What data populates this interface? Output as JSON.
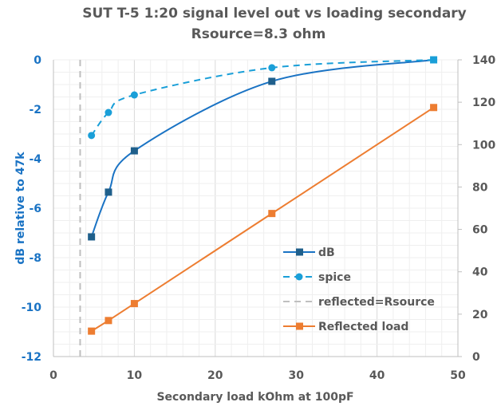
{
  "chart_data": {
    "type": "line",
    "title": "SUT T-5 1:20 signal level out vs loading secondary",
    "subtitle": "Rsource=8.3 ohm",
    "xlabel": "Secondary load kOhm at 100pF",
    "ylabel": "dB relative to 47k",
    "y2label": "",
    "xlim": [
      0,
      50
    ],
    "ylim": [
      -12,
      0
    ],
    "y2lim": [
      0,
      140
    ],
    "xticks": [
      0,
      10,
      20,
      30,
      40,
      50
    ],
    "yticks": [
      0,
      -2,
      -4,
      -6,
      -8,
      -10,
      -12
    ],
    "y2ticks": [
      140,
      120,
      100,
      80,
      60,
      40,
      20,
      0
    ],
    "grid": true,
    "legend_position": "bottom-right-inside",
    "series": [
      {
        "name": "dB",
        "axis": "left",
        "style": "solid-smooth",
        "marker": "square",
        "color": "#1a73c4",
        "marker_color": "#1f5f8b",
        "x": [
          4.7,
          6.8,
          10,
          27,
          47
        ],
        "values": [
          -7.16,
          -5.35,
          -3.68,
          -0.87,
          0
        ]
      },
      {
        "name": "spice",
        "axis": "left",
        "style": "dashed-smooth",
        "marker": "circle",
        "color": "#1a9fd8",
        "marker_color": "#1a9fd8",
        "x": [
          4.7,
          6.8,
          10,
          27,
          47
        ],
        "values": [
          -3.06,
          -2.13,
          -1.42,
          -0.32,
          0
        ]
      },
      {
        "name": "reflected=Rsource",
        "axis": "left",
        "style": "dashed-vertical",
        "marker": "none",
        "color": "#bfbfbf",
        "x": [
          3.3,
          3.3
        ],
        "values": [
          -12,
          0
        ]
      },
      {
        "name": "Reflected load",
        "axis": "right",
        "style": "solid",
        "marker": "square",
        "color": "#ed7d31",
        "marker_color": "#ed7d31",
        "x": [
          4.7,
          6.8,
          10,
          27,
          47
        ],
        "values": [
          12,
          17,
          25,
          67.5,
          117.5
        ]
      }
    ]
  }
}
